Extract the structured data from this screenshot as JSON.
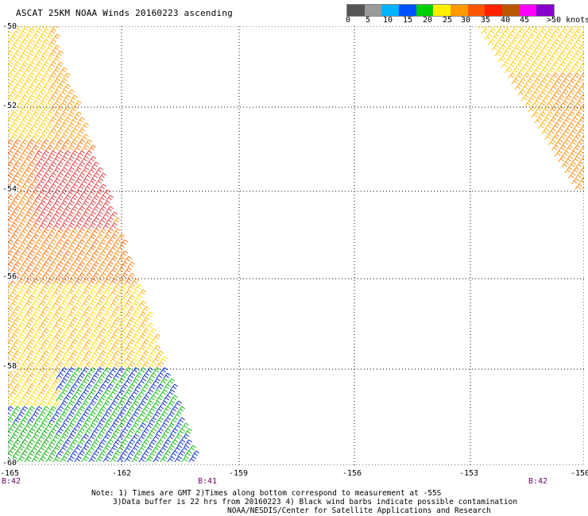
{
  "title": "ASCAT 25KM NOAA Winds 20160223 ascending",
  "legend": {
    "labels": [
      "0",
      "5",
      "10",
      "15",
      "20",
      "25",
      "30",
      "35",
      "40",
      "45",
      ">50 knots"
    ],
    "colors": [
      "#555555",
      "#9a9a9a",
      "#00b4ff",
      "#0050ff",
      "#00d000",
      "#ffee00",
      "#ff9900",
      "#ff5500",
      "#ff2200",
      "#bb5500",
      "#ff00ff",
      "#8800cc"
    ]
  },
  "map": {
    "lat_labels": [
      "-50",
      "-52",
      "-54",
      "-56",
      "-58",
      "-60"
    ],
    "lon_labels": [
      "-165",
      "-162",
      "-159",
      "-156",
      "-153",
      "-150"
    ],
    "time_labels": [
      "B:42",
      "B:41",
      "B:42"
    ]
  },
  "notes": {
    "line1": "Note: 1) Times are GMT 2)Times along bottom correspond to measurement at -55S",
    "line2": "3)Data buffer is 22 hrs from 20160223 4) Black wind barbs indicate possible contamination",
    "line3": "NOAA/NESDIS/Center for Satellite Applications and Research"
  }
}
